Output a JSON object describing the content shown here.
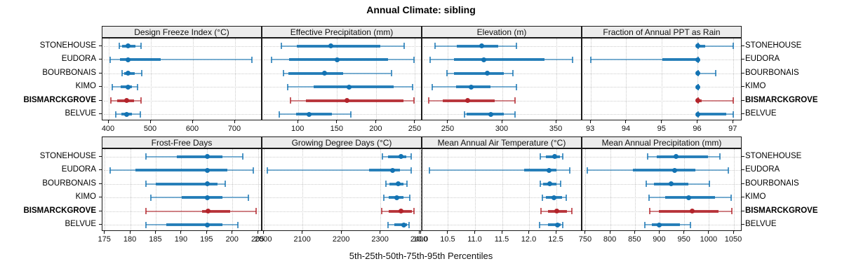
{
  "title": "Annual Climate: sibling",
  "colors": {
    "normal": "#1373b3",
    "highlight": "#b3242b",
    "header_bg": "#ececec",
    "grid": "#c9c9c9",
    "border": "#1a1a1a"
  },
  "sites": [
    "STONEHOUSE",
    "EUDORA",
    "BOURBONAIS",
    "KIMO",
    "BISMARCKGROVE",
    "BELVUE"
  ],
  "highlight_site": "BISMARCKGROVE",
  "chart_data": {
    "type": "dotplot-percentiles",
    "xlabel": "5th-25th-50th-75th-95th Percentiles",
    "percentile_labels": [
      "5th",
      "25th",
      "50th",
      "75th",
      "95th"
    ],
    "legend_position": "none",
    "grid": "dotted",
    "site_order_top_to_bottom": [
      "STONEHOUSE",
      "EUDORA",
      "BOURBONAIS",
      "KIMO",
      "BISMARCKGROVE",
      "BELVUE"
    ],
    "panels": [
      {
        "title": "Design Freeze Index (°C)",
        "xlim": [
          385,
          765
        ],
        "ticks": [
          400,
          500,
          600,
          700
        ],
        "tick_labels": [
          "400",
          "500",
          "600",
          "700"
        ],
        "values": [
          [
            425,
            432,
            445,
            463,
            477
          ],
          [
            404,
            426,
            445,
            523,
            740
          ],
          [
            431,
            437,
            445,
            462,
            478
          ],
          [
            408,
            428,
            445,
            455,
            468
          ],
          [
            405,
            420,
            443,
            460,
            476
          ],
          [
            417,
            430,
            442,
            455,
            475
          ]
        ]
      },
      {
        "title": "Effective Precipitation (mm)",
        "xlim": [
          54,
          259
        ],
        "ticks": [
          100,
          150,
          200,
          250
        ],
        "tick_labels": [
          "100",
          "150",
          "200",
          "250"
        ],
        "values": [
          [
            78,
            98,
            142,
            205,
            236
          ],
          [
            66,
            88,
            150,
            215,
            248
          ],
          [
            81,
            87,
            134,
            157,
            219
          ],
          [
            86,
            120,
            165,
            222,
            246
          ],
          [
            90,
            110,
            162,
            235,
            248
          ],
          [
            76,
            97,
            114,
            143,
            167
          ]
        ]
      },
      {
        "title": "Elevation (m)",
        "xlim": [
          226,
          374
        ],
        "ticks": [
          250,
          300,
          350
        ],
        "tick_labels": [
          "250",
          "300",
          "350"
        ],
        "values": [
          [
            238,
            258,
            281,
            296,
            313
          ],
          [
            233,
            255,
            283,
            339,
            365
          ],
          [
            249,
            255,
            286,
            301,
            310
          ],
          [
            235,
            257,
            271,
            289,
            313
          ],
          [
            232,
            245,
            268,
            293,
            312
          ],
          [
            265,
            267,
            289,
            301,
            312
          ]
        ]
      },
      {
        "title": "Fraction of Annual PPT as Rain",
        "xlim": [
          92.76,
          97.25
        ],
        "ticks": [
          93,
          94,
          95,
          96,
          97
        ],
        "tick_labels": [
          "93",
          "94",
          "95",
          "96",
          "97"
        ],
        "values": [
          [
            96,
            96,
            96,
            96.2,
            97
          ],
          [
            93,
            95,
            96,
            96,
            96
          ],
          [
            96,
            96,
            96,
            96,
            96.5
          ],
          [
            96,
            96,
            96,
            96,
            96
          ],
          [
            96,
            96,
            96,
            96.1,
            97
          ],
          [
            96,
            96,
            96,
            96.8,
            97
          ]
        ]
      },
      {
        "title": "Frost-Free Days",
        "xlim": [
          174.5,
          205.8
        ],
        "ticks": [
          175,
          180,
          185,
          190,
          195,
          200,
          205
        ],
        "tick_labels": [
          "175",
          "180",
          "185",
          "190",
          "195",
          "200",
          "205"
        ],
        "values": [
          [
            183,
            189,
            195,
            198,
            202
          ],
          [
            176,
            181,
            195,
            199,
            204
          ],
          [
            183,
            185,
            195,
            197,
            198.5
          ],
          [
            184,
            190,
            195,
            198,
            203
          ],
          [
            183,
            194,
            195.2,
            199.5,
            204.5
          ],
          [
            183,
            187,
            195,
            198,
            201
          ]
        ]
      },
      {
        "title": "Growing Degree Days (°C)",
        "xlim": [
          1996,
          2407
        ],
        "ticks": [
          2000,
          2100,
          2200,
          2300,
          2400
        ],
        "tick_labels": [
          "2000",
          "2100",
          "2200",
          "2300",
          "2400"
        ],
        "values": [
          [
            2304,
            2319,
            2352,
            2365,
            2378
          ],
          [
            2008,
            2270,
            2331,
            2350,
            2378
          ],
          [
            2314,
            2322,
            2344,
            2359,
            2368
          ],
          [
            2308,
            2320,
            2342,
            2358,
            2374
          ],
          [
            2302,
            2320,
            2352,
            2380,
            2386
          ],
          [
            2318,
            2334,
            2360,
            2368,
            2373
          ]
        ]
      },
      {
        "title": "Mean Annual Air Temperature (°C)",
        "xlim": [
          10.02,
          12.98
        ],
        "ticks": [
          10.0,
          10.5,
          11.0,
          11.5,
          12.0,
          12.5
        ],
        "tick_labels": [
          "10.0",
          "10.5",
          "11.0",
          "11.5",
          "12.0",
          "12.5"
        ],
        "values": [
          [
            12.2,
            12.3,
            12.47,
            12.56,
            12.62
          ],
          [
            10.15,
            11.9,
            12.36,
            12.5,
            12.75
          ],
          [
            12.2,
            12.25,
            12.37,
            12.5,
            12.58
          ],
          [
            12.24,
            12.3,
            12.46,
            12.6,
            12.68
          ],
          [
            12.22,
            12.35,
            12.51,
            12.7,
            12.79
          ],
          [
            12.19,
            12.35,
            12.52,
            12.58,
            12.62
          ]
        ]
      },
      {
        "title": "Mean Annual Precipitation (mm)",
        "xlim": [
          743,
          1067
        ],
        "ticks": [
          750,
          800,
          850,
          900,
          950,
          1000,
          1050
        ],
        "tick_labels": [
          "750",
          "800",
          "850",
          "900",
          "950",
          "1000",
          "1050"
        ],
        "values": [
          [
            875,
            893,
            932,
            998,
            1022
          ],
          [
            753,
            845,
            930,
            972,
            1038
          ],
          [
            872,
            888,
            923,
            958,
            1000
          ],
          [
            878,
            910,
            958,
            1012,
            1044
          ],
          [
            880,
            898,
            965,
            1018,
            1046
          ],
          [
            870,
            884,
            898,
            940,
            962
          ]
        ]
      }
    ]
  }
}
